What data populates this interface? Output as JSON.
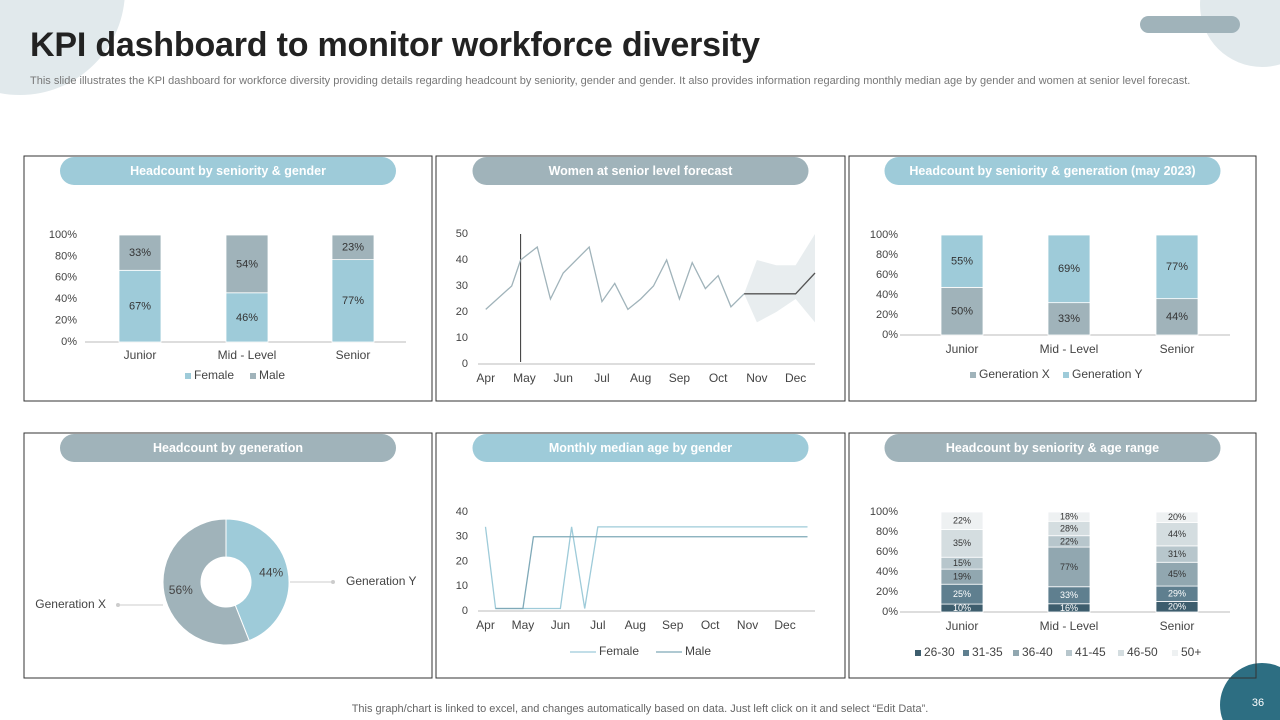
{
  "title": "KPI dashboard to monitor workforce diversity",
  "subtitle": "This slide illustrates the KPI dashboard for workforce diversity providing details regarding headcount by seniority, gender and gender. It also provides information regarding monthly median age by gender and women at senior level forecast.",
  "footer": "This graph/chart is linked to excel,  and changes automatically based on data. Just left click on it and select “Edit Data”.",
  "page_number": 36,
  "chart_data": [
    {
      "type": "bar",
      "title": "Headcount by seniority & gender",
      "stacking": "percent",
      "categories": [
        "Junior",
        "Mid - Level",
        "Senior"
      ],
      "series": [
        {
          "name": "Female",
          "color": "#9ecbd9",
          "values": [
            67,
            46,
            77
          ],
          "value_labels": [
            "67%",
            "46%",
            "77%"
          ]
        },
        {
          "name": "Male",
          "color": "#a0b3ba",
          "values": [
            33,
            54,
            23
          ],
          "value_labels": [
            "33%",
            "54%",
            "23%"
          ]
        }
      ],
      "ylim": [
        0,
        100
      ],
      "yticks": [
        {
          "value": 0,
          "label": "0%"
        },
        {
          "value": 20,
          "label": "20%"
        },
        {
          "value": 40,
          "label": "40%"
        },
        {
          "value": 60,
          "label": "60%"
        },
        {
          "value": 80,
          "label": "80%"
        },
        {
          "value": 100,
          "label": "100%"
        }
      ]
    },
    {
      "type": "line",
      "title": "Women at senior level forecast",
      "series": [
        {
          "color": "#a0b3ba",
          "x": [
            0,
            0.67,
            0.9,
            1.33,
            1.67,
            2,
            2.67,
            3,
            3.33,
            3.67,
            4,
            4.33,
            4.67,
            5,
            5.33,
            5.67,
            6,
            6.33,
            6.67
          ],
          "values": [
            21,
            30,
            40,
            45,
            25,
            35,
            45,
            24,
            31,
            21,
            25,
            30,
            40,
            25,
            39,
            29,
            34,
            22,
            27
          ]
        },
        {
          "color": "#555555",
          "x": [
            6.67,
            8,
            8.5
          ],
          "values": [
            27,
            27,
            35
          ]
        }
      ],
      "band": {
        "color": "#e8edef",
        "x": [
          6.67,
          7,
          7.5,
          8,
          8.5
        ],
        "lower": [
          27,
          16,
          20,
          25,
          16
        ],
        "upper": [
          27,
          40,
          38,
          38,
          50
        ]
      },
      "reference_x": 0.9,
      "xlim": [
        -0.2,
        8.5
      ],
      "xticks": [
        {
          "value": 0,
          "label": "Apr"
        },
        {
          "value": 1,
          "label": "May"
        },
        {
          "value": 2,
          "label": "Jun"
        },
        {
          "value": 3,
          "label": "Jul"
        },
        {
          "value": 4,
          "label": "Aug"
        },
        {
          "value": 5,
          "label": "Sep"
        },
        {
          "value": 6,
          "label": "Oct"
        },
        {
          "value": 7,
          "label": "Nov"
        },
        {
          "value": 8,
          "label": "Dec"
        }
      ],
      "ylim": [
        0,
        50
      ],
      "yticks": [
        0,
        10,
        20,
        30,
        40,
        50
      ]
    },
    {
      "type": "bar",
      "title": "Headcount by seniority & generation (may 2023)",
      "stacking": "percent",
      "categories": [
        "Junior",
        "Mid - Level",
        "Senior"
      ],
      "series": [
        {
          "name": "Generation X",
          "color": "#a0b3ba",
          "values": [
            50,
            33,
            44
          ],
          "value_labels": [
            "50%",
            "33%",
            "44%"
          ]
        },
        {
          "name": "Generation Y",
          "color": "#9ecbd9",
          "values": [
            55,
            69,
            77
          ],
          "value_labels": [
            "55%",
            "69%",
            "77%"
          ]
        }
      ],
      "ylim": [
        0,
        100
      ],
      "yticks": [
        {
          "value": 0,
          "label": "0%"
        },
        {
          "value": 20,
          "label": "20%"
        },
        {
          "value": 40,
          "label": "40%"
        },
        {
          "value": 60,
          "label": "60%"
        },
        {
          "value": 80,
          "label": "80%"
        },
        {
          "value": 100,
          "label": "100%"
        }
      ]
    },
    {
      "type": "pie",
      "title": "Headcount by generation",
      "categories": [
        "Generation Y",
        "Generation X"
      ],
      "values": [
        44,
        56
      ],
      "value_labels": [
        "44%",
        "56%"
      ],
      "colors": [
        "#9ecbd9",
        "#a0b3ba"
      ]
    },
    {
      "type": "line",
      "title": "Monthly median age by gender",
      "series": [
        {
          "name": "Female",
          "color": "#9ecbd9",
          "x": [
            0,
            0.27,
            2,
            2.3,
            2.65,
            3,
            8.6
          ],
          "values": [
            34,
            1,
            1,
            34,
            1,
            34,
            34
          ]
        },
        {
          "name": "Male",
          "color": "#7fa9b8",
          "x": [
            0.27,
            1,
            1.28,
            8.6
          ],
          "values": [
            1,
            1,
            30,
            30
          ]
        }
      ],
      "xlim": [
        -0.2,
        8.8
      ],
      "xticks": [
        {
          "value": 0,
          "label": "Apr"
        },
        {
          "value": 1,
          "label": "May"
        },
        {
          "value": 2,
          "label": "Jun"
        },
        {
          "value": 3,
          "label": "Jul"
        },
        {
          "value": 4,
          "label": "Aug"
        },
        {
          "value": 5,
          "label": "Sep"
        },
        {
          "value": 6,
          "label": "Oct"
        },
        {
          "value": 7,
          "label": "Nov"
        },
        {
          "value": 8,
          "label": "Dec"
        }
      ],
      "ylim": [
        0,
        40
      ],
      "yticks": [
        0,
        10,
        20,
        30,
        40
      ]
    },
    {
      "type": "bar",
      "title": "Headcount by seniority & age range",
      "stacking": "percent",
      "categories": [
        "Junior",
        "Mid - Level",
        "Senior"
      ],
      "series": [
        {
          "name": "26-30",
          "color": "#3d5d6d",
          "values": [
            10,
            16,
            20
          ],
          "value_labels": [
            "10%",
            "16%",
            "20%"
          ]
        },
        {
          "name": "31-35",
          "color": "#5f7f8f",
          "values": [
            25,
            33,
            29
          ],
          "value_labels": [
            "25%",
            "33%",
            "29%"
          ]
        },
        {
          "name": "36-40",
          "color": "#91a7b0",
          "values": [
            19,
            77,
            45
          ],
          "value_labels": [
            "19%",
            "77%",
            "45%"
          ]
        },
        {
          "name": "41-45",
          "color": "#b7c6cc",
          "values": [
            15,
            22,
            31
          ],
          "value_labels": [
            "15%",
            "22%",
            "31%"
          ]
        },
        {
          "name": "46-50",
          "color": "#d4dde0",
          "values": [
            35,
            28,
            44
          ],
          "value_labels": [
            "35%",
            "28%",
            "44%"
          ]
        },
        {
          "name": "50+",
          "color": "#eef1f2",
          "values": [
            22,
            18,
            20
          ],
          "value_labels": [
            "22%",
            "18%",
            "20%"
          ]
        }
      ],
      "ylim": [
        0,
        100
      ],
      "yticks": [
        {
          "value": 0,
          "label": "0%"
        },
        {
          "value": 20,
          "label": "20%"
        },
        {
          "value": 40,
          "label": "40%"
        },
        {
          "value": 60,
          "label": "60%"
        },
        {
          "value": 80,
          "label": "80%"
        },
        {
          "value": 100,
          "label": "100%"
        }
      ]
    }
  ]
}
